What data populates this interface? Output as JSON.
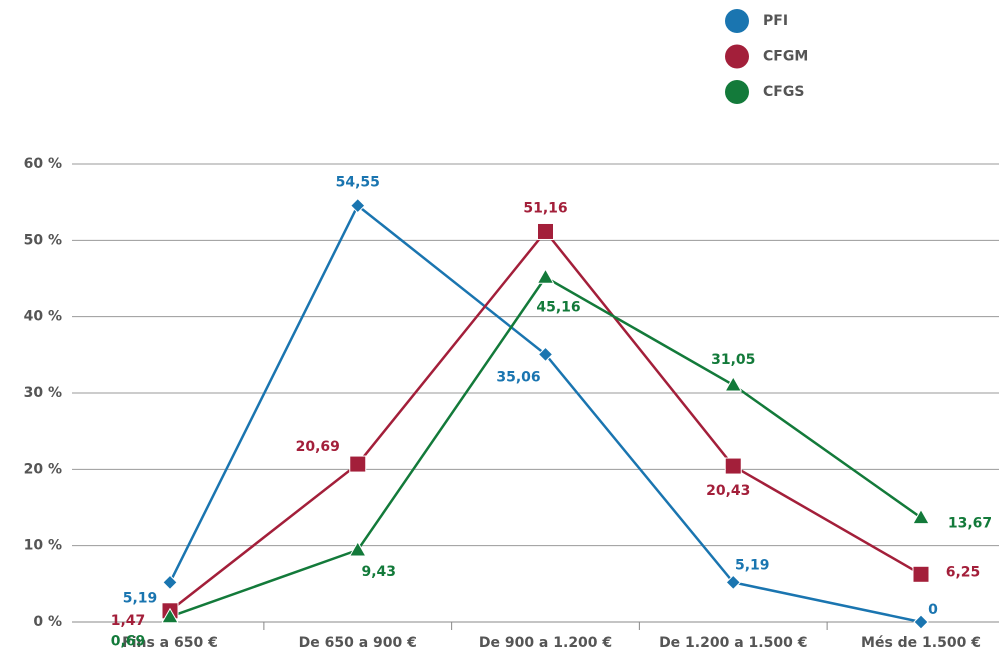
{
  "chart_data": {
    "type": "line",
    "categories": [
      "Fins a 650 €",
      "De 650 a 900 €",
      "De 900 a 1.200 €",
      "De 1.200 a 1.500 €",
      "Més de 1.500 €"
    ],
    "series": [
      {
        "name": "PFI",
        "color": "#1a75b0",
        "marker": "diamond",
        "values": [
          5.19,
          54.55,
          35.06,
          5.19,
          0
        ],
        "value_labels": [
          "5,19",
          "54,55",
          "35,06",
          "5,19",
          "0"
        ]
      },
      {
        "name": "CFGM",
        "color": "#a31f3a",
        "marker": "square",
        "values": [
          1.47,
          20.69,
          51.16,
          20.43,
          6.25
        ],
        "value_labels": [
          "1,47",
          "20,69",
          "51,16",
          "20,43",
          "6,25"
        ]
      },
      {
        "name": "CFGS",
        "color": "#137a3a",
        "marker": "triangle",
        "values": [
          0.69,
          9.43,
          45.16,
          31.05,
          13.67
        ],
        "value_labels": [
          "0,69",
          "9,43",
          "45,16",
          "31,05",
          "13,67"
        ]
      }
    ],
    "ylim": [
      0,
      60
    ],
    "yticks": [
      {
        "value": 0,
        "label": "0 %"
      },
      {
        "value": 10,
        "label": "10 %"
      },
      {
        "value": 20,
        "label": "20 %"
      },
      {
        "value": 30,
        "label": "30 %"
      },
      {
        "value": 40,
        "label": "40 %"
      },
      {
        "value": 50,
        "label": "50 %"
      },
      {
        "value": 60,
        "label": "60 %"
      }
    ],
    "grid": true,
    "legend": "top-right"
  }
}
